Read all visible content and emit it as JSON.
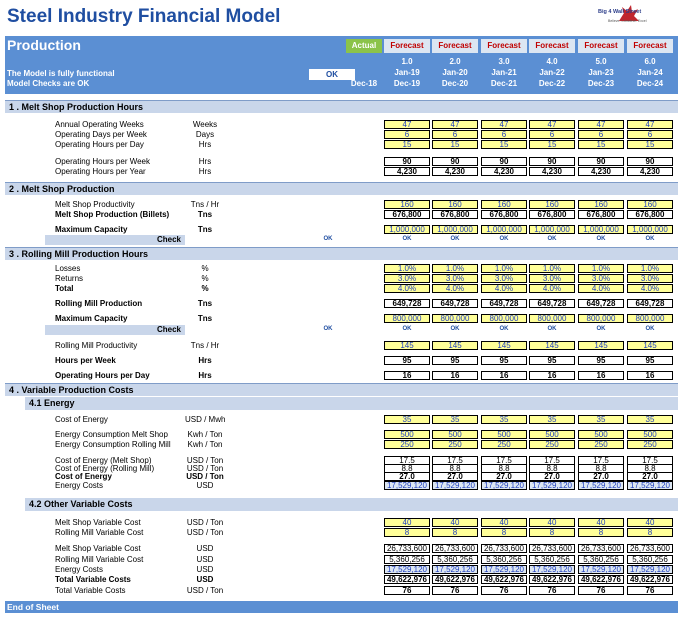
{
  "title": "Steel Industry Financial Model",
  "logo": {
    "line1": "Big 4 Wall Street",
    "line2": "Believe. Conceive. Excel"
  },
  "header": {
    "section": "Production",
    "status1": "The Model is fully functional",
    "status2": "Model Checks are OK",
    "ok": "OK",
    "period_types": [
      "Actual",
      "Forecast",
      "Forecast",
      "Forecast",
      "Forecast",
      "Forecast",
      "Forecast"
    ],
    "period_nums": [
      "",
      "1.0",
      "2.0",
      "3.0",
      "4.0",
      "5.0",
      "6.0"
    ],
    "period_start": [
      "",
      "Jan-19",
      "Jan-20",
      "Jan-21",
      "Jan-22",
      "Jan-23",
      "Jan-24"
    ],
    "period_end": [
      "Dec-18",
      "Dec-19",
      "Dec-20",
      "Dec-21",
      "Dec-22",
      "Dec-23",
      "Dec-24"
    ]
  },
  "sections": {
    "s1": "1 . Melt Shop Production Hours",
    "s2": "2 . Melt Shop Production",
    "s3": "3 . Rolling Mill Production Hours",
    "s4": "4 . Variable Production Costs",
    "s41": "4.1 Energy",
    "s42": "4.2 Other Variable Costs"
  },
  "check_label": "Check",
  "ok_small": "OK",
  "rows": {
    "r1": {
      "label": "Annual Operating Weeks",
      "unit": "Weeks",
      "values": [
        "47",
        "47",
        "47",
        "47",
        "47",
        "47"
      ]
    },
    "r2": {
      "label": "Operating Days per Week",
      "unit": "Days",
      "values": [
        "6",
        "6",
        "6",
        "6",
        "6",
        "6"
      ]
    },
    "r3": {
      "label": "Operating Hours per Day",
      "unit": "Hrs",
      "values": [
        "15",
        "15",
        "15",
        "15",
        "15",
        "15"
      ]
    },
    "r4": {
      "label": "Operating Hours per Week",
      "unit": "Hrs",
      "values": [
        "90",
        "90",
        "90",
        "90",
        "90",
        "90"
      ]
    },
    "r5": {
      "label": "Operating Hours per Year",
      "unit": "Hrs",
      "values": [
        "4,230",
        "4,230",
        "4,230",
        "4,230",
        "4,230",
        "4,230"
      ]
    },
    "r6": {
      "label": "Melt Shop Productivity",
      "unit": "Tns / Hr",
      "values": [
        "160",
        "160",
        "160",
        "160",
        "160",
        "160"
      ]
    },
    "r7": {
      "label": "Melt Shop Production (Billets)",
      "unit": "Tns",
      "values": [
        "676,800",
        "676,800",
        "676,800",
        "676,800",
        "676,800",
        "676,800"
      ]
    },
    "r8": {
      "label": "Maximum Capacity",
      "unit": "Tns",
      "values": [
        "1,000,000",
        "1,000,000",
        "1,000,000",
        "1,000,000",
        "1,000,000",
        "1,000,000"
      ]
    },
    "r9": {
      "label": "Losses",
      "unit": "%",
      "values": [
        "1.0%",
        "1.0%",
        "1.0%",
        "1.0%",
        "1.0%",
        "1.0%"
      ]
    },
    "r10": {
      "label": "Returns",
      "unit": "%",
      "values": [
        "3.0%",
        "3.0%",
        "3.0%",
        "3.0%",
        "3.0%",
        "3.0%"
      ]
    },
    "r11": {
      "label": "Total",
      "unit": "%",
      "values": [
        "4.0%",
        "4.0%",
        "4.0%",
        "4.0%",
        "4.0%",
        "4.0%"
      ]
    },
    "r12": {
      "label": "Rolling Mill Production",
      "unit": "Tns",
      "values": [
        "649,728",
        "649,728",
        "649,728",
        "649,728",
        "649,728",
        "649,728"
      ]
    },
    "r13": {
      "label": "Maximum Capacity",
      "unit": "Tns",
      "values": [
        "800,000",
        "800,000",
        "800,000",
        "800,000",
        "800,000",
        "800,000"
      ]
    },
    "r14": {
      "label": "Rolling Mill Productivity",
      "unit": "Tns / Hr",
      "values": [
        "145",
        "145",
        "145",
        "145",
        "145",
        "145"
      ]
    },
    "r15": {
      "label": "Hours per Week",
      "unit": "Hrs",
      "values": [
        "95",
        "95",
        "95",
        "95",
        "95",
        "95"
      ]
    },
    "r16": {
      "label": "Operating Hours per Day",
      "unit": "Hrs",
      "values": [
        "16",
        "16",
        "16",
        "16",
        "16",
        "16"
      ]
    },
    "r17": {
      "label": "Cost of Energy",
      "unit": "USD / Mwh",
      "values": [
        "35",
        "35",
        "35",
        "35",
        "35",
        "35"
      ]
    },
    "r18": {
      "label": "Energy Consumption Melt Shop",
      "unit": "Kwh / Ton",
      "values": [
        "500",
        "500",
        "500",
        "500",
        "500",
        "500"
      ]
    },
    "r19": {
      "label": "Energy Consumption Rolling Mill",
      "unit": "Kwh / Ton",
      "values": [
        "250",
        "250",
        "250",
        "250",
        "250",
        "250"
      ]
    },
    "r20": {
      "label": "Cost of Energy (Melt Shop)",
      "unit": "USD / Ton",
      "values": [
        "17.5",
        "17.5",
        "17.5",
        "17.5",
        "17.5",
        "17.5"
      ]
    },
    "r21": {
      "label": "Cost of Energy (Rolling Mill)",
      "unit": "USD / Ton",
      "values": [
        "8.8",
        "8.8",
        "8.8",
        "8.8",
        "8.8",
        "8.8"
      ]
    },
    "r22": {
      "label": "Cost of Energy",
      "unit": "USD / Ton",
      "values": [
        "27.0",
        "27.0",
        "27.0",
        "27.0",
        "27.0",
        "27.0"
      ]
    },
    "r23": {
      "label": "Energy Costs",
      "unit": "USD",
      "values": [
        "17,529,120",
        "17,529,120",
        "17,529,120",
        "17,529,120",
        "17,529,120",
        "17,529,120"
      ]
    },
    "r24": {
      "label": "Melt Shop Variable Cost",
      "unit": "USD / Ton",
      "values": [
        "40",
        "40",
        "40",
        "40",
        "40",
        "40"
      ]
    },
    "r25": {
      "label": "Rolling Mill Variable Cost",
      "unit": "USD / Ton",
      "values": [
        "8",
        "8",
        "8",
        "8",
        "8",
        "8"
      ]
    },
    "r26": {
      "label": "Melt Shop Variable Cost",
      "unit": "USD",
      "values": [
        "26,733,600",
        "26,733,600",
        "26,733,600",
        "26,733,600",
        "26,733,600",
        "26,733,600"
      ]
    },
    "r27": {
      "label": "Rolling Mill Variable Cost",
      "unit": "USD",
      "values": [
        "5,360,256",
        "5,360,256",
        "5,360,256",
        "5,360,256",
        "5,360,256",
        "5,360,256"
      ]
    },
    "r28": {
      "label": "Energy Costs",
      "unit": "USD",
      "values": [
        "17,529,120",
        "17,529,120",
        "17,529,120",
        "17,529,120",
        "17,529,120",
        "17,529,120"
      ]
    },
    "r29": {
      "label": "Total Variable Costs",
      "unit": "USD",
      "values": [
        "49,622,976",
        "49,622,976",
        "49,622,976",
        "49,622,976",
        "49,622,976",
        "49,622,976"
      ]
    },
    "r30": {
      "label": "Total Variable Costs",
      "unit": "USD / Ton",
      "values": [
        "76",
        "76",
        "76",
        "76",
        "76",
        "76"
      ]
    }
  },
  "footer": "End of Sheet"
}
